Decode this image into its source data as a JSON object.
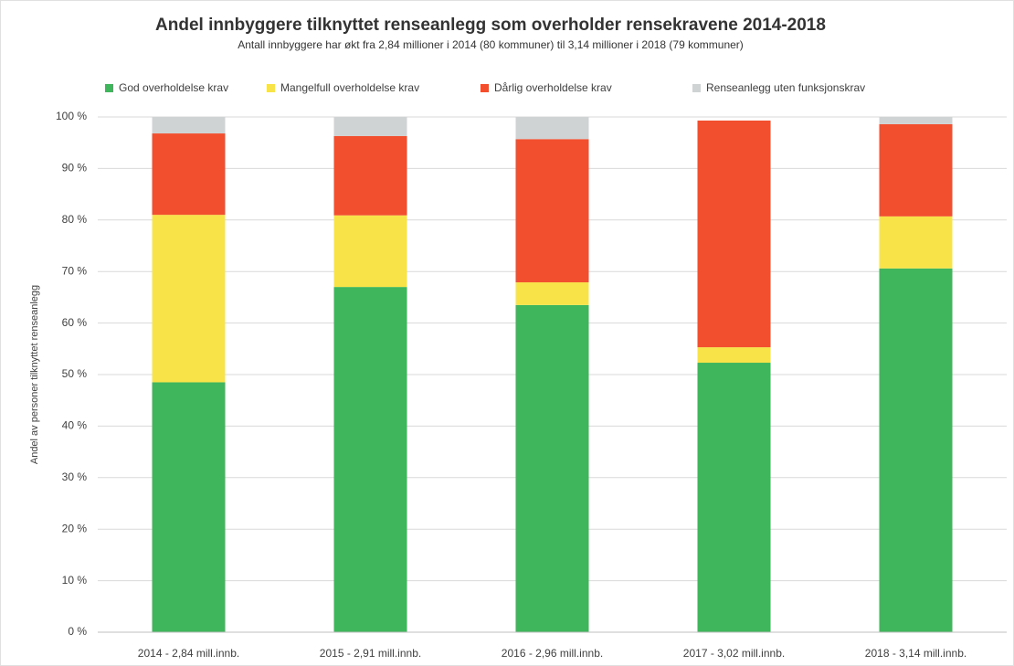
{
  "chart_data": {
    "type": "stacked_bar",
    "title": "Andel innbyggere tilknyttet renseanlegg som overholder rensekravene 2014-2018",
    "subtitle": "Antall innbyggere har økt fra 2,84 millioner i 2014 (80 kommuner) til 3,14 millioner i 2018 (79 kommuner)",
    "ylabel": "Andel av personer tilknyttet renseanlegg",
    "categories": [
      "2014 - 2,84 mill.innb.",
      "2015 - 2,91 mill.innb.",
      "2016 - 2,96 mill.innb.",
      "2017 - 3,02 mill.innb.",
      "2018 - 3,14 mill.innb."
    ],
    "series": [
      {
        "name": "God overholdelse krav",
        "color": "#3fb65b",
        "values": [
          48.5,
          67.0,
          63.5,
          52.3,
          70.6
        ]
      },
      {
        "name": "Mangelfull overholdelse krav",
        "color": "#f8e448",
        "values": [
          32.5,
          13.9,
          4.4,
          3.0,
          10.1
        ]
      },
      {
        "name": "Dårlig overholdelse krav",
        "color": "#f24f2e",
        "values": [
          15.8,
          15.4,
          27.8,
          44.0,
          17.9
        ]
      },
      {
        "name": "Renseanlegg uten funksjonskrav",
        "color": "#d0d3d4",
        "values": [
          3.2,
          3.7,
          4.3,
          0,
          1.4
        ]
      }
    ],
    "ylim": [
      0,
      100
    ],
    "yticks": [
      {
        "value": 0,
        "label": "0 %"
      },
      {
        "value": 10,
        "label": "10 %"
      },
      {
        "value": 20,
        "label": "20 %"
      },
      {
        "value": 30,
        "label": "30 %"
      },
      {
        "value": 40,
        "label": "40 %"
      },
      {
        "value": 50,
        "label": "50 %"
      },
      {
        "value": 60,
        "label": "60 %"
      },
      {
        "value": 70,
        "label": "70 %"
      },
      {
        "value": 80,
        "label": "80 %"
      },
      {
        "value": 90,
        "label": "90 %"
      },
      {
        "value": 100,
        "label": "100 %"
      }
    ],
    "grid": true,
    "legend": "top"
  }
}
